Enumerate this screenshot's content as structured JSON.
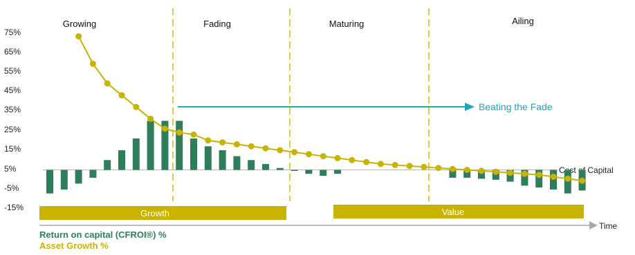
{
  "chart_data": {
    "type": "bar",
    "stages": [
      "Growing",
      "Fading",
      "Maturing",
      "Ailing"
    ],
    "y_ticks": [
      "75%",
      "65%",
      "55%",
      "45%",
      "35%",
      "25%",
      "15%",
      "5%",
      "-5%",
      "-15%"
    ],
    "ylim": [
      -15,
      75
    ],
    "series": [
      {
        "name": "Return on capital (CFROI®) %",
        "type": "bar",
        "color": "#2e7d5b",
        "values": [
          -7,
          -5,
          -2,
          1,
          10,
          15,
          21,
          30,
          30,
          30,
          21,
          17,
          15,
          12,
          10,
          8,
          6,
          5,
          3,
          2,
          3,
          null,
          null,
          null,
          null,
          null,
          null,
          null,
          1,
          1,
          0.5,
          0,
          -1,
          -3,
          -4,
          -5,
          -7,
          -5.5
        ]
      },
      {
        "name": "Asset Growth %",
        "type": "line",
        "color": "#c8b400",
        "values": [
          null,
          null,
          73,
          59,
          49,
          43,
          37,
          31,
          26,
          24,
          23,
          20,
          19,
          18,
          17,
          16,
          15,
          14,
          13,
          12,
          11,
          10,
          9,
          8,
          7.5,
          7,
          6.5,
          6,
          5.5,
          5,
          4.5,
          4,
          3.5,
          3,
          2.5,
          1.5,
          0.5,
          -0.5
        ]
      }
    ],
    "cost_of_capital_label": "Cost of Capital",
    "cost_of_capital_value": 5,
    "growth_band_label": "Growth",
    "value_band_label": "Value",
    "beating_fade_label": "Beating the Fade",
    "beating_fade_color": "#1aa7b8",
    "band_color": "#c8b400",
    "divider_color": "#d4b800",
    "x_axis_label": "Time"
  }
}
